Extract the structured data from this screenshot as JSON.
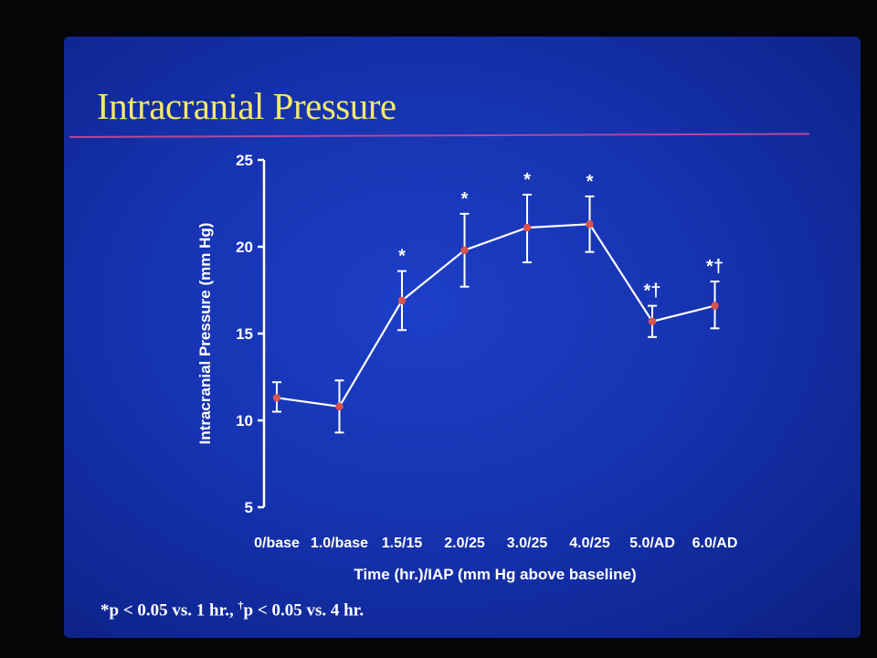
{
  "slide": {
    "title": "Intracranial Pressure",
    "footnote": {
      "part1": "*p < 0.05 vs. 1 hr., ",
      "dagger": "†",
      "part2": "p < 0.05 vs. 4 hr."
    }
  },
  "colors": {
    "background": "#1633b0",
    "title": "#f3e86c",
    "rule": "#b24a9c",
    "line": "#ffffff",
    "marker": "#d9534f",
    "text": "#ffffff"
  },
  "chart_data": {
    "type": "line",
    "title": "",
    "xlabel": "Time (hr.)/IAP (mm Hg above baseline)",
    "ylabel": "Intracranial Pressure (mm Hg)",
    "ylim": [
      5,
      25
    ],
    "yticks": [
      5,
      10,
      15,
      20,
      25
    ],
    "grid": false,
    "categories": [
      "0/base",
      "1.0/base",
      "1.5/15",
      "2.0/25",
      "3.0/25",
      "4.0/25",
      "5.0/AD",
      "6.0/AD"
    ],
    "series": [
      {
        "values": [
          11.3,
          10.8,
          16.9,
          19.8,
          21.1,
          21.3,
          15.7,
          16.6
        ],
        "error_upper": [
          12.2,
          12.3,
          18.6,
          21.9,
          23.0,
          22.9,
          16.6,
          18.0
        ],
        "error_lower": [
          10.5,
          9.3,
          15.2,
          17.7,
          19.1,
          19.7,
          14.8,
          15.3
        ],
        "annotations": [
          "",
          "",
          "*",
          "*",
          "*",
          "*",
          "*†",
          "*†"
        ]
      }
    ]
  }
}
